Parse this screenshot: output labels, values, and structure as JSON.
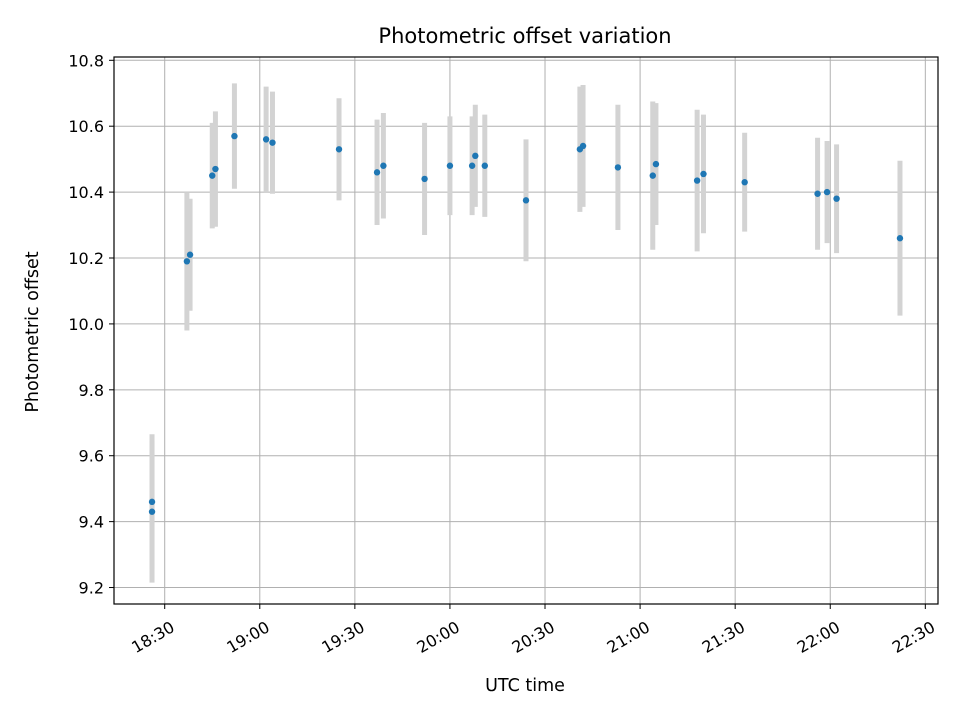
{
  "chart_data": {
    "type": "scatter",
    "title": "Photometric offset variation",
    "xlabel": "UTC time",
    "ylabel": "Photometric offset",
    "grid": true,
    "xlim": [
      "18:14",
      "22:34"
    ],
    "ylim": [
      9.15,
      10.81
    ],
    "x_ticks": [
      "18:30",
      "19:00",
      "19:30",
      "20:00",
      "20:30",
      "21:00",
      "21:30",
      "22:00",
      "22:30"
    ],
    "y_ticks": [
      9.2,
      9.4,
      9.6,
      9.8,
      10.0,
      10.2,
      10.4,
      10.6,
      10.8
    ],
    "colors": {
      "point": "#1f77b4",
      "errorbar": "#d3d3d3",
      "grid": "#b0b0b0"
    },
    "series": [
      {
        "x": [
          "18:26",
          "18:26",
          "18:37",
          "18:38",
          "18:45",
          "18:46",
          "18:52",
          "19:02",
          "19:04",
          "19:25",
          "19:37",
          "19:39",
          "19:52",
          "20:00",
          "20:07",
          "20:08",
          "20:11",
          "20:24",
          "20:41",
          "20:42",
          "20:53",
          "21:04",
          "21:05",
          "21:18",
          "21:20",
          "21:33",
          "21:56",
          "21:59",
          "22:02",
          "22:22"
        ],
        "y": [
          9.43,
          9.46,
          10.19,
          10.21,
          10.45,
          10.47,
          10.57,
          10.56,
          10.55,
          10.53,
          10.46,
          10.48,
          10.44,
          10.48,
          10.48,
          10.51,
          10.48,
          10.375,
          10.53,
          10.54,
          10.475,
          10.45,
          10.485,
          10.435,
          10.455,
          10.43,
          10.395,
          10.4,
          10.38,
          10.26
        ],
        "yerr": [
          0.215,
          0.205,
          0.21,
          0.17,
          0.16,
          0.175,
          0.16,
          0.16,
          0.155,
          0.155,
          0.16,
          0.16,
          0.17,
          0.15,
          0.15,
          0.155,
          0.155,
          0.185,
          0.19,
          0.185,
          0.19,
          0.225,
          0.185,
          0.215,
          0.18,
          0.15,
          0.17,
          0.155,
          0.165,
          0.235
        ]
      }
    ]
  }
}
